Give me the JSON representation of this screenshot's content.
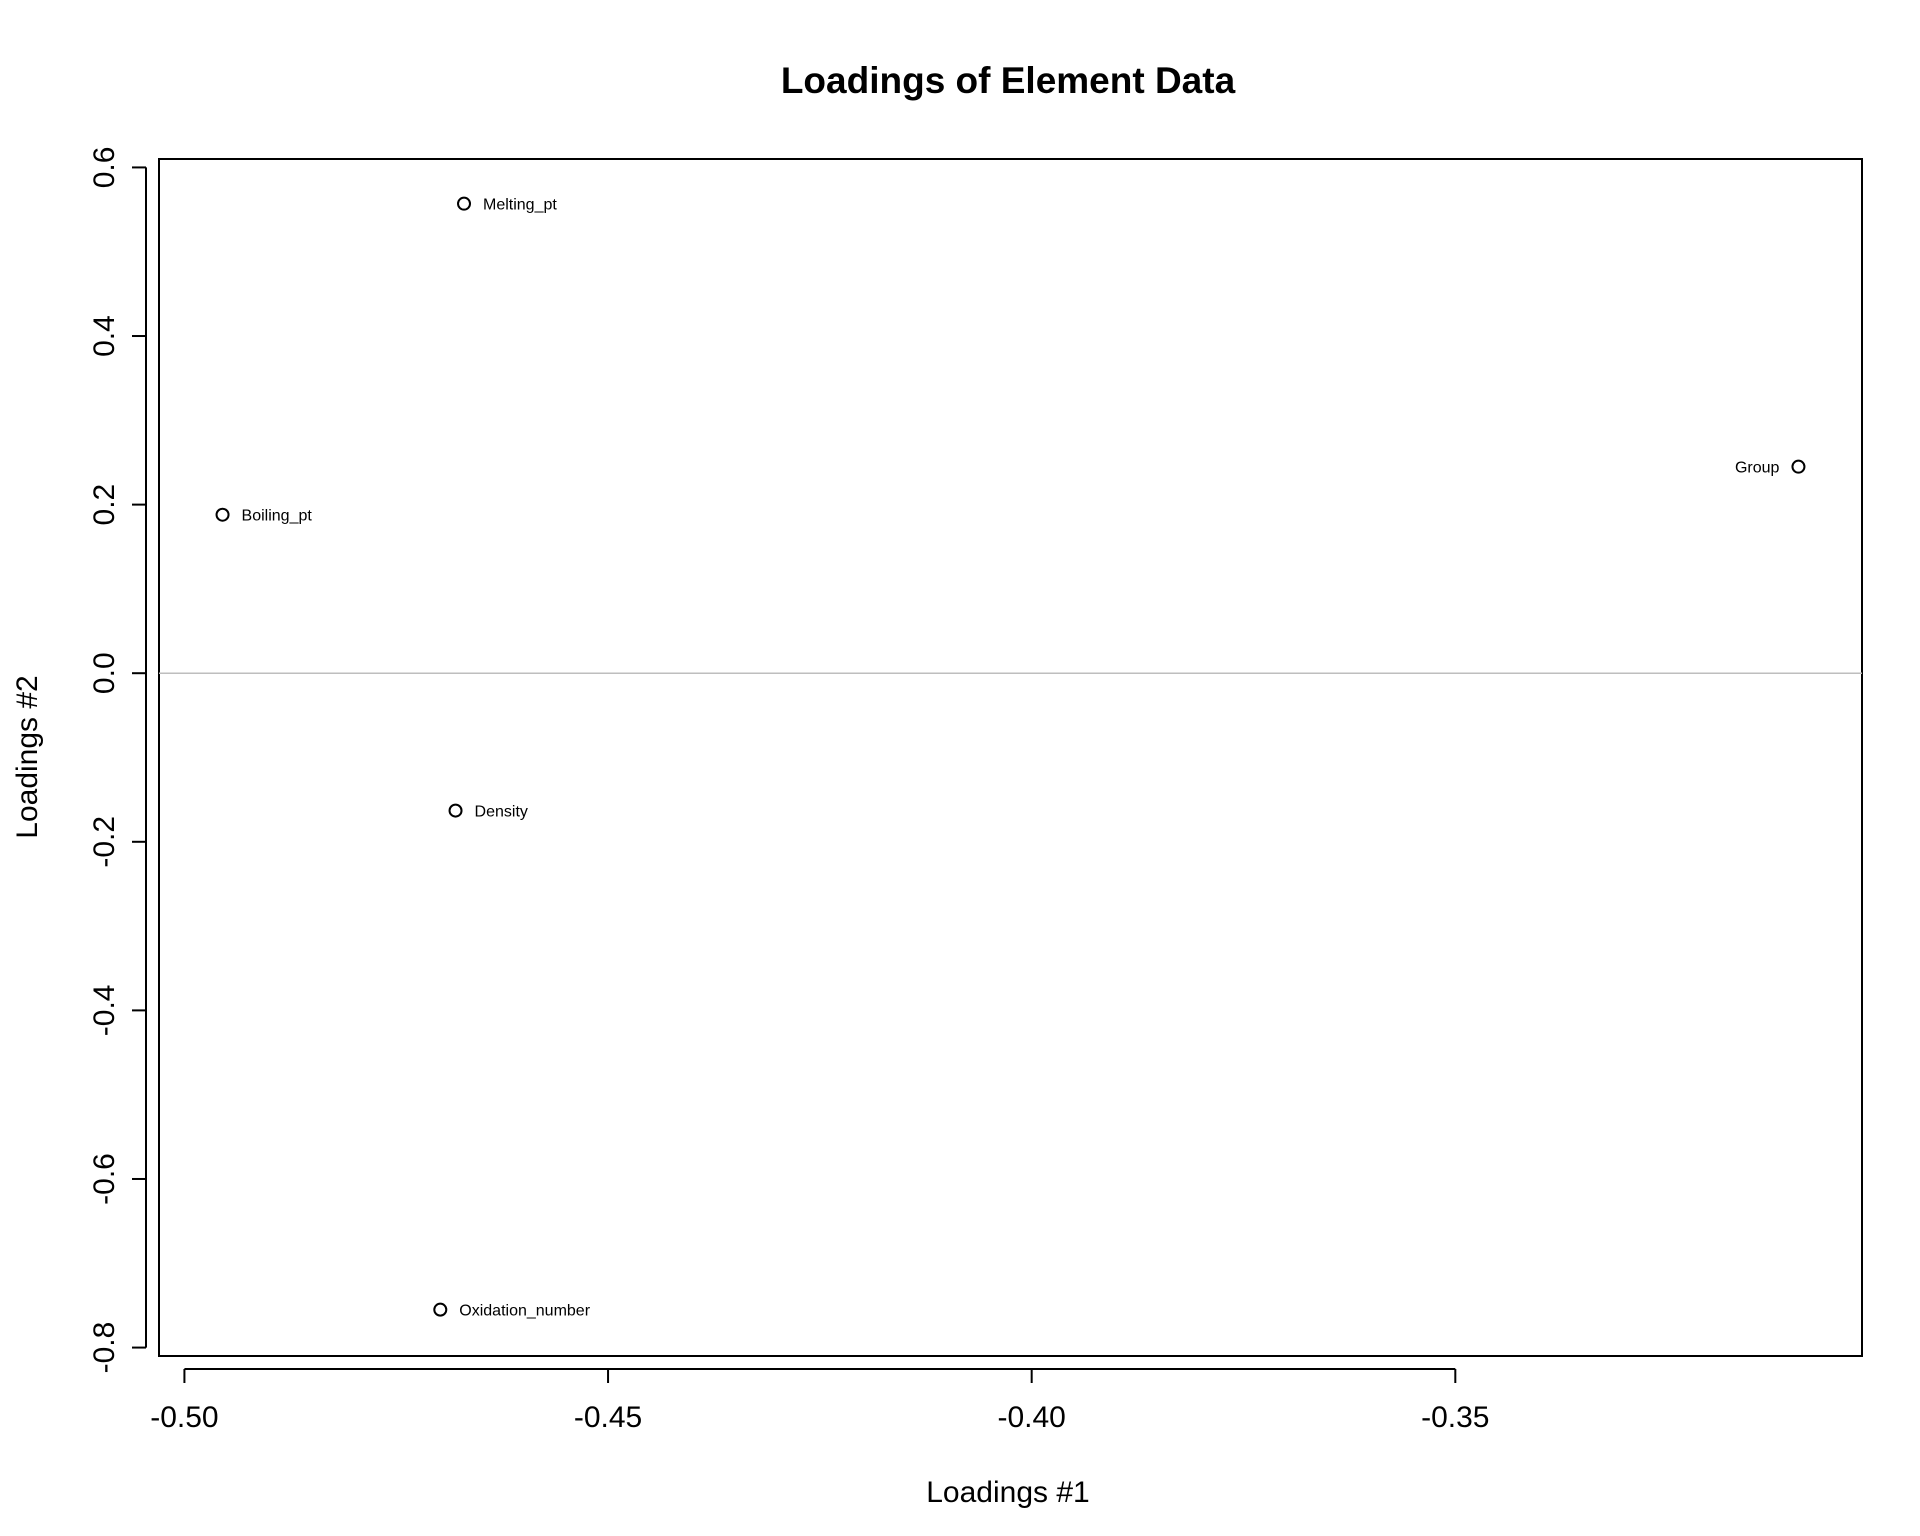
{
  "chart_data": {
    "type": "scatter",
    "title": "Loadings of Element Data",
    "xlabel": "Loadings #1",
    "ylabel": "Loadings #2",
    "xlim": [
      -0.503,
      -0.302
    ],
    "ylim": [
      -0.81,
      0.61
    ],
    "xticks": [
      -0.5,
      -0.45,
      -0.4,
      -0.35
    ],
    "xtick_labels": [
      "-0.50",
      "-0.45",
      "-0.40",
      "-0.35"
    ],
    "yticks": [
      -0.8,
      -0.6,
      -0.4,
      -0.2,
      0.0,
      0.2,
      0.4,
      0.6
    ],
    "ytick_labels": [
      "-0.8",
      "-0.6",
      "-0.4",
      "-0.2",
      "0.0",
      "0.2",
      "0.4",
      "0.6"
    ],
    "reference_line": {
      "y": 0.0,
      "color": "#bebebe"
    },
    "grid": false,
    "legend": "none",
    "points": [
      {
        "label": "Melting_pt",
        "x": -0.467,
        "y": 0.557,
        "label_side": "right"
      },
      {
        "label": "Group",
        "x": -0.3095,
        "y": 0.245,
        "label_side": "left"
      },
      {
        "label": "Boiling_pt",
        "x": -0.4955,
        "y": 0.188,
        "label_side": "right"
      },
      {
        "label": "Density",
        "x": -0.468,
        "y": -0.163,
        "label_side": "right"
      },
      {
        "label": "Oxidation_number",
        "x": -0.4698,
        "y": -0.755,
        "label_side": "right"
      }
    ]
  }
}
